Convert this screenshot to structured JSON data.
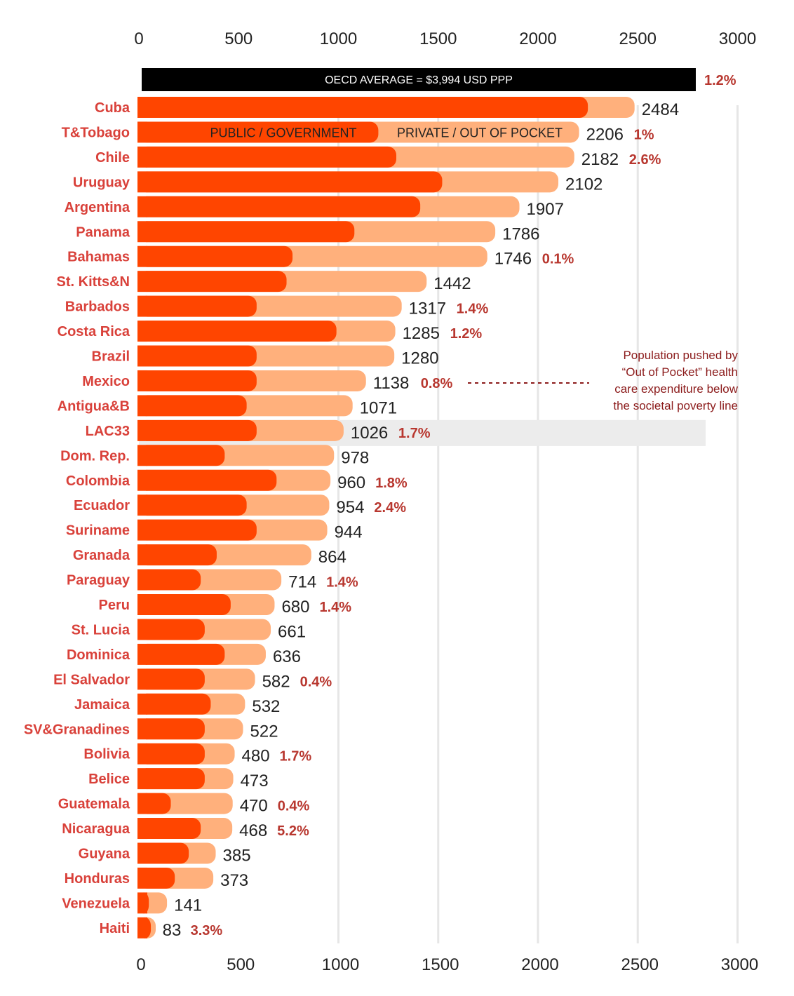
{
  "chart_data": {
    "type": "bar",
    "orientation": "horizontal",
    "stacked": true,
    "xlim": [
      0,
      3000
    ],
    "x_ticks": [
      "0",
      "500",
      "1000",
      "1500",
      "2000",
      "2500",
      "3000"
    ],
    "legend": {
      "public": "PUBLIC / GOVERNMENT",
      "private": "PRIVATE / OUT OF POCKET"
    },
    "colors": {
      "public": "#ff4500",
      "private": "#ffb07c",
      "country_label": "#d9413a",
      "pct_label": "#b8372f",
      "highlight_band": "#ececec",
      "grid": "#e6e6e6"
    },
    "oecd": {
      "label": "OECD AVERAGE = $3,994 USD PPP",
      "pct": "1.2%"
    },
    "highlight": "LAC33",
    "annotation": {
      "lines": [
        "Population pushed by",
        "“Out of Pocket” health",
        "care expenditure below",
        "the societal poverty line"
      ],
      "points_to": "Mexico"
    },
    "categories": [
      "Cuba",
      "T&Tobago",
      "Chile",
      "Uruguay",
      "Argentina",
      "Panama",
      "Bahamas",
      "St. Kitts&N",
      "Barbados",
      "Costa Rica",
      "Brazil",
      "Mexico",
      "Antigua&B",
      "LAC33",
      "Dom. Rep.",
      "Colombia",
      "Ecuador",
      "Suriname",
      "Granada",
      "Paraguay",
      "Peru",
      "St. Lucia",
      "Dominica",
      "El Salvador",
      "Jamaica",
      "SV&Granadines",
      "Bolivia",
      "Belice",
      "Guatemala",
      "Nicaragua",
      "Guyana",
      "Honduras",
      "Venezuela",
      "Haiti"
    ],
    "totals": [
      2484,
      2206,
      2182,
      2102,
      1907,
      1786,
      1746,
      1442,
      1317,
      1285,
      1280,
      1138,
      1071,
      1026,
      978,
      960,
      954,
      944,
      864,
      714,
      680,
      661,
      636,
      582,
      532,
      522,
      480,
      473,
      470,
      468,
      385,
      373,
      141,
      83
    ],
    "total_labels": [
      "2484",
      "2206",
      "2182",
      "2102",
      "1907",
      "1786",
      "1746",
      "1442",
      "1317",
      "1285",
      "1280",
      "1138",
      "1071",
      "1026",
      "978",
      "960",
      "954",
      "944",
      "864",
      "714",
      "680",
      "661",
      "636",
      "582",
      "532",
      "522",
      "480",
      "473",
      "470",
      "468",
      "385",
      "373",
      "141",
      "83"
    ],
    "series": [
      {
        "key": "public",
        "values": [
          2250,
          1200,
          1290,
          1520,
          1410,
          1080,
          770,
          740,
          590,
          990,
          590,
          590,
          540,
          590,
          430,
          690,
          540,
          590,
          390,
          310,
          460,
          330,
          430,
          330,
          360,
          330,
          330,
          330,
          160,
          310,
          250,
          180,
          50,
          60
        ]
      },
      {
        "key": "private",
        "values": [
          234,
          1006,
          892,
          582,
          497,
          706,
          976,
          702,
          727,
          295,
          690,
          548,
          531,
          436,
          548,
          270,
          414,
          354,
          474,
          404,
          220,
          331,
          206,
          252,
          172,
          192,
          150,
          143,
          310,
          158,
          135,
          193,
          91,
          23
        ]
      }
    ],
    "oop_poverty_pct": [
      "",
      "1%",
      "2.6%",
      "",
      "",
      "",
      "0.1%",
      "",
      "1.4%",
      "1.2%",
      "",
      "0.8%",
      "",
      "1.7%",
      "",
      "1.8%",
      "2.4%",
      "",
      "",
      "1.4%",
      "1.4%",
      "",
      "",
      "0.4%",
      "",
      "",
      "1.7%",
      "",
      "0.4%",
      "5.2%",
      "",
      "",
      "",
      "3.3%"
    ]
  }
}
